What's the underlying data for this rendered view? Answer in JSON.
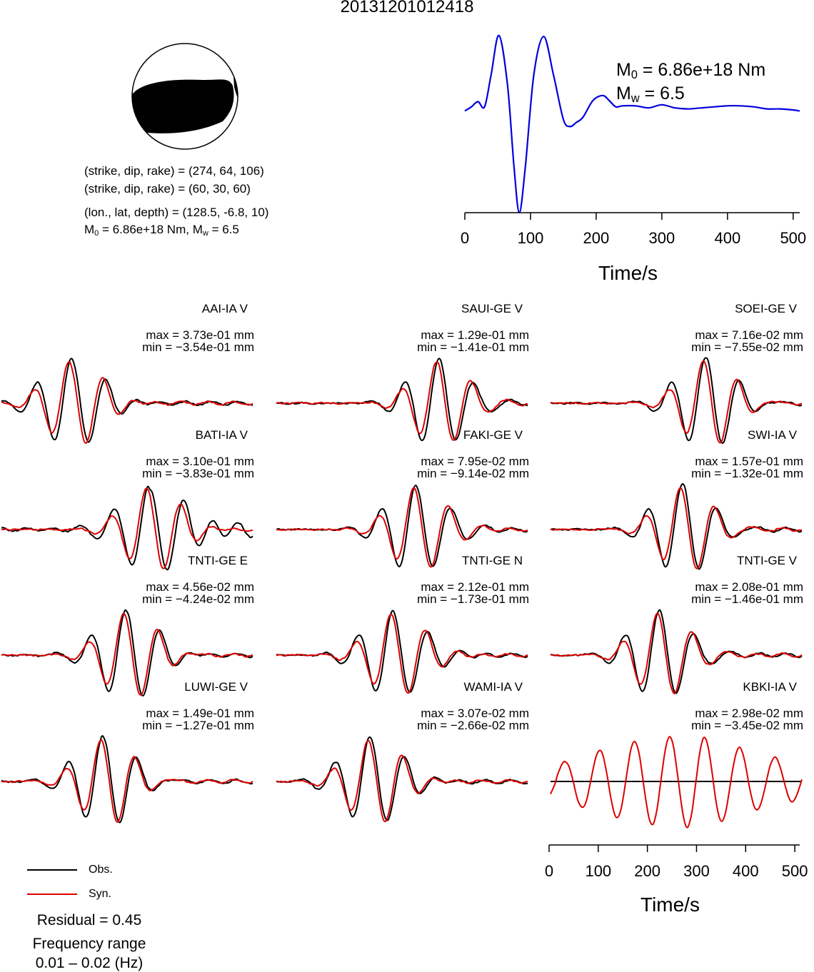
{
  "title": "20131201012418",
  "beachball": {
    "nodal_plane_1": "(strike, dip, rake) = (274, 64, 106)",
    "nodal_plane_2": "(strike, dip, rake) = (60, 30, 60)",
    "location": "(lon., lat, depth) = (128.5, -6.8, 10)",
    "moment_prefix": "M",
    "moment_sub": "0",
    "moment_value": " = 6.86e+18 Nm, M",
    "mw_sub": "w",
    "mw_value": " = 6.5"
  },
  "stf": {
    "m0_prefix": "M",
    "m0_sub": "0",
    "m0_value": " = 6.86e+18 Nm",
    "mw_prefix": "M",
    "mw_sub": "w",
    "mw_value": " = 6.5",
    "xlabel": "Time/s",
    "ticks": [
      "0",
      "100",
      "200",
      "300",
      "400",
      "500"
    ],
    "color": "#0000dd"
  },
  "waveforms": {
    "xlabel": "Time/s",
    "ticks": [
      "0",
      "100",
      "200",
      "300",
      "400",
      "500"
    ],
    "obs_color": "#000000",
    "syn_color": "#dd0000"
  },
  "legend": {
    "obs_label": "Obs.",
    "syn_label": "Syn."
  },
  "residual": "Residual = 0.45",
  "frequency_label": "Frequency range",
  "frequency_value": "0.01 – 0.02 (Hz)",
  "chart_data": [
    {
      "type": "line",
      "title": "",
      "xlabel": "Time/s",
      "xlim": [
        0,
        510
      ],
      "series": [
        {
          "name": "",
          "x": [
            0,
            10,
            20,
            30,
            40,
            52,
            65,
            75,
            83,
            92,
            105,
            120,
            135,
            150,
            160,
            170,
            180,
            195,
            210,
            220,
            230,
            240,
            260,
            280,
            300,
            320,
            340,
            360,
            380,
            400,
            420,
            440,
            460,
            480,
            500,
            510
          ],
          "values": [
            0.1,
            0.14,
            0.19,
            0.14,
            0.45,
            0.83,
            0.35,
            -0.45,
            -0.88,
            -0.45,
            0.45,
            0.82,
            0.45,
            0.02,
            -0.05,
            -0.01,
            0.04,
            0.2,
            0.25,
            0.2,
            0.14,
            0.15,
            0.15,
            0.13,
            0.16,
            0.13,
            0.12,
            0.13,
            0.14,
            0.15,
            0.15,
            0.14,
            0.12,
            0.12,
            0.11,
            0.1
          ]
        }
      ]
    },
    {
      "type": "line",
      "panels": [
        {
          "station": "AAI-IA V",
          "max": "max = 3.73e-01 mm",
          "min": "min = −3.54e-01 mm"
        },
        {
          "station": "SAUI-GE V",
          "max": "max = 1.29e-01 mm",
          "min": "min = −1.41e-01 mm"
        },
        {
          "station": "SOEI-GE V",
          "max": "max = 7.16e-02 mm",
          "min": "min = −7.55e-02 mm"
        },
        {
          "station": "BATI-IA V",
          "max": "max = 3.10e-01 mm",
          "min": "min = −3.83e-01 mm"
        },
        {
          "station": "FAKI-GE V",
          "max": "max = 7.95e-02 mm",
          "min": "min = −9.14e-02 mm"
        },
        {
          "station": "SWI-IA V",
          "max": "max = 1.57e-01 mm",
          "min": "min = −1.32e-01 mm"
        },
        {
          "station": "TNTI-GE E",
          "max": "max = 4.56e-02 mm",
          "min": "min = −4.24e-02 mm"
        },
        {
          "station": "TNTI-GE N",
          "max": "max = 2.12e-01 mm",
          "min": "min = −1.73e-01 mm"
        },
        {
          "station": "TNTI-GE V",
          "max": "max = 2.08e-01 mm",
          "min": "min = −1.46e-01 mm"
        },
        {
          "station": "LUWI-GE V",
          "max": "max = 1.49e-01 mm",
          "min": "min = −1.27e-01 mm"
        },
        {
          "station": "WAMI-IA V",
          "max": "max = 3.07e-02 mm",
          "min": "min = −2.66e-02 mm"
        },
        {
          "station": "KBKI-IA V",
          "max": "max = 2.98e-02 mm",
          "min": "min = −3.45e-02 mm"
        }
      ],
      "xlabel": "Time/s",
      "xlim": [
        0,
        510
      ],
      "series": [
        {
          "name": "Obs."
        },
        {
          "name": "Syn."
        }
      ]
    }
  ]
}
